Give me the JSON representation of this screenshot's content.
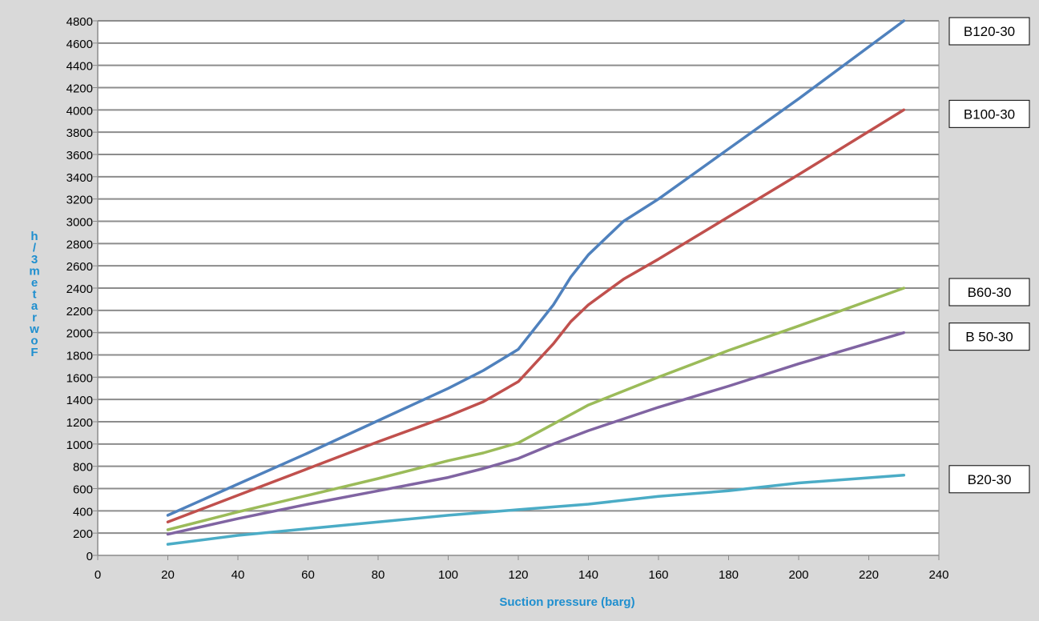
{
  "chart_data": {
    "type": "line",
    "title": "",
    "xlabel": "Suction pressure (barg)",
    "ylabel_lines": [
      "h",
      "/",
      "3",
      "m",
      "e",
      "t",
      "a",
      "r",
      "w",
      "o",
      "F"
    ],
    "xlim": [
      0,
      240
    ],
    "ylim": [
      0,
      4800
    ],
    "x_ticks": [
      0,
      20,
      40,
      60,
      80,
      100,
      120,
      140,
      160,
      180,
      200,
      220,
      240
    ],
    "y_ticks": [
      0,
      200,
      400,
      600,
      800,
      1000,
      1200,
      1400,
      1600,
      1800,
      2000,
      2200,
      2400,
      2600,
      2800,
      3000,
      3200,
      3400,
      3600,
      3800,
      4000,
      4200,
      4400,
      4600,
      4800
    ],
    "grid": "horizontal",
    "legend": "right",
    "series": [
      {
        "name": "B120-30",
        "color": "#4f81bd",
        "x": [
          20,
          40,
          60,
          80,
          100,
          110,
          120,
          125,
          130,
          135,
          140,
          150,
          160,
          180,
          200,
          230
        ],
        "values": [
          360,
          640,
          920,
          1210,
          1500,
          1660,
          1850,
          2050,
          2250,
          2500,
          2700,
          3000,
          3200,
          3650,
          4100,
          4800
        ]
      },
      {
        "name": "B100-30",
        "color": "#c0504d",
        "x": [
          20,
          40,
          60,
          80,
          100,
          110,
          120,
          125,
          130,
          135,
          140,
          150,
          160,
          180,
          200,
          230
        ],
        "values": [
          300,
          540,
          780,
          1020,
          1250,
          1380,
          1560,
          1730,
          1900,
          2100,
          2250,
          2480,
          2660,
          3040,
          3420,
          4000
        ]
      },
      {
        "name": "B60-30",
        "color": "#9bbb59",
        "x": [
          20,
          40,
          60,
          80,
          100,
          110,
          120,
          130,
          140,
          160,
          180,
          200,
          230
        ],
        "values": [
          230,
          390,
          540,
          690,
          850,
          920,
          1010,
          1180,
          1350,
          1600,
          1840,
          2060,
          2400
        ]
      },
      {
        "name": "B 50-30",
        "color": "#8064a2",
        "x": [
          20,
          40,
          60,
          80,
          100,
          110,
          120,
          130,
          140,
          160,
          180,
          200,
          230
        ],
        "values": [
          190,
          330,
          460,
          580,
          700,
          780,
          870,
          1000,
          1120,
          1330,
          1520,
          1720,
          2000
        ]
      },
      {
        "name": "B20-30",
        "color": "#4bacc6",
        "x": [
          20,
          40,
          60,
          80,
          100,
          120,
          140,
          160,
          180,
          200,
          230
        ],
        "values": [
          100,
          180,
          240,
          300,
          360,
          410,
          460,
          530,
          580,
          650,
          720
        ]
      }
    ]
  }
}
